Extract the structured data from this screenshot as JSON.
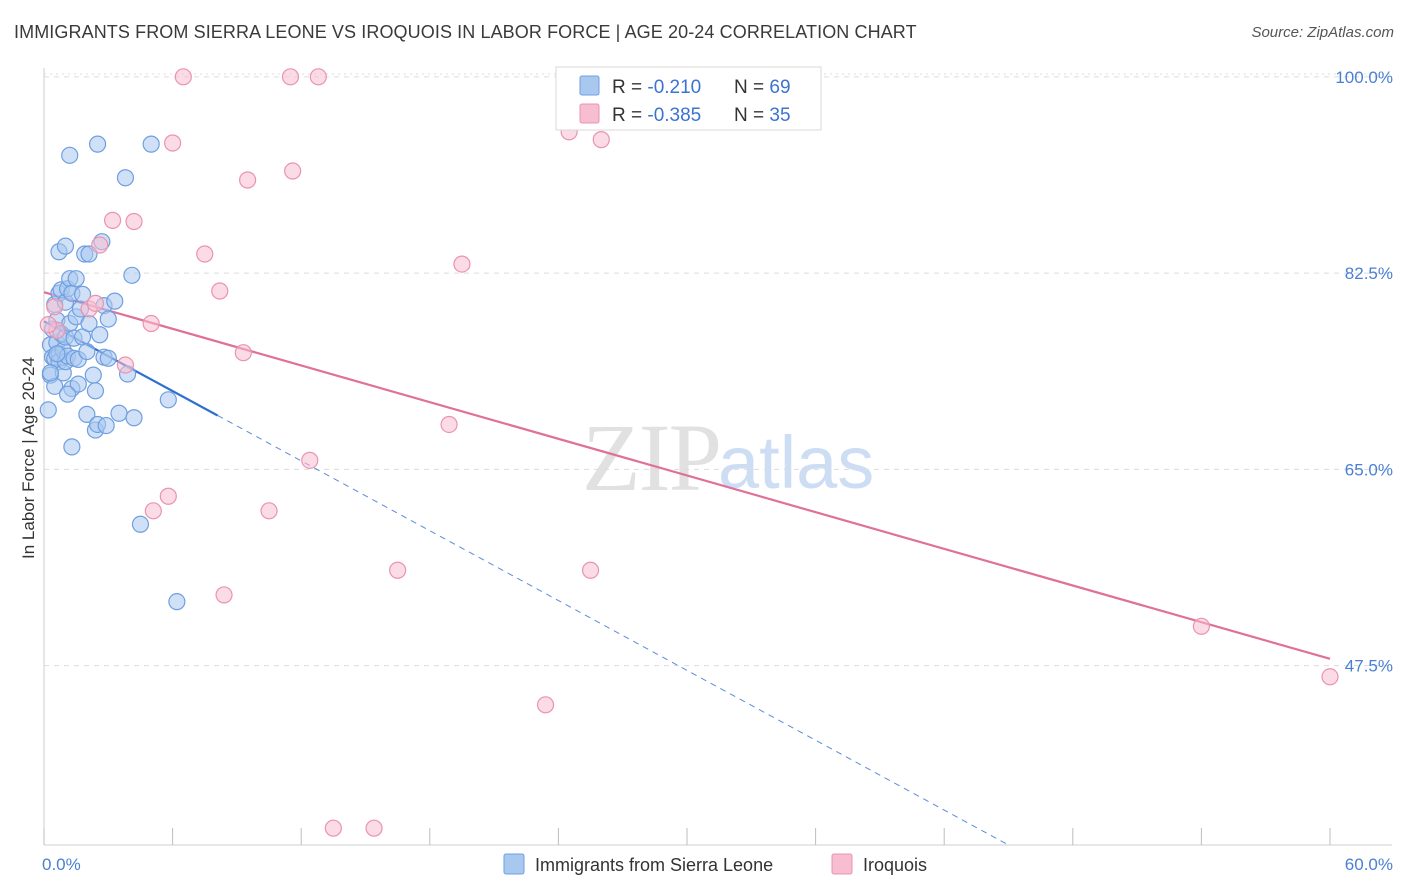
{
  "title": "IMMIGRANTS FROM SIERRA LEONE VS IROQUOIS IN LABOR FORCE | AGE 20-24 CORRELATION CHART",
  "source": "Source: ZipAtlas.com",
  "colors": {
    "blue_fill": "#a9c8f0",
    "blue_stroke": "#6f9fe0",
    "blue_line": "#2f6fd0",
    "pink_fill": "#f7bdd0",
    "pink_stroke": "#ea93b0",
    "pink_line": "#e0709a",
    "tick_label": "#4a7fd4",
    "grid": "#dcdcdc"
  },
  "chart_data": {
    "type": "scatter",
    "title": "IMMIGRANTS FROM SIERRA LEONE VS IROQUOIS IN LABOR FORCE | AGE 20-24 CORRELATION CHART",
    "xlabel": "",
    "ylabel": "In Labor Force | Age 20-24",
    "xlim": [
      0,
      60
    ],
    "ylim": [
      31.5,
      101.5
    ],
    "x_tick_labels": [
      "0.0%",
      "60.0%"
    ],
    "y_ticks": [
      47.5,
      65.0,
      82.5,
      100.0
    ],
    "y_tick_labels": [
      "47.5%",
      "65.0%",
      "82.5%",
      "100.0%"
    ],
    "watermark": "ZIPatlas",
    "legend": {
      "position": "top-center",
      "entries": [
        {
          "r_label": "R = ",
          "r_value": "-0.210",
          "n_label": "N = ",
          "n_value": "69"
        },
        {
          "r_label": "R = ",
          "r_value": "-0.385",
          "n_label": "N = ",
          "n_value": "35"
        }
      ]
    },
    "bottom_legend": [
      "Immigrants from Sierra Leone",
      "Iroquois"
    ],
    "series": [
      {
        "name": "Immigrants from Sierra Leone",
        "color": "blue",
        "trend_solid": {
          "x": [
            0,
            8.1
          ],
          "y": [
            78.2,
            69.8
          ]
        },
        "trend_dashed": {
          "x": [
            8.1,
            45.0
          ],
          "y": [
            69.8,
            31.5
          ]
        },
        "points": [
          [
            0.2,
            70.3
          ],
          [
            0.3,
            76.1
          ],
          [
            0.3,
            73.4
          ],
          [
            0.4,
            75.0
          ],
          [
            0.4,
            77.5
          ],
          [
            0.5,
            79.7
          ],
          [
            0.5,
            74.9
          ],
          [
            0.5,
            72.4
          ],
          [
            0.6,
            78.3
          ],
          [
            0.6,
            76.3
          ],
          [
            0.7,
            80.7
          ],
          [
            0.7,
            75.3
          ],
          [
            0.7,
            74.6
          ],
          [
            0.7,
            84.4
          ],
          [
            0.8,
            81.0
          ],
          [
            0.8,
            77.1
          ],
          [
            0.9,
            75.6
          ],
          [
            0.9,
            73.6
          ],
          [
            1.0,
            79.9
          ],
          [
            1.0,
            76.8
          ],
          [
            1.0,
            74.6
          ],
          [
            1.0,
            84.9
          ],
          [
            1.1,
            81.1
          ],
          [
            1.1,
            75.1
          ],
          [
            1.2,
            82.0
          ],
          [
            1.2,
            78.0
          ],
          [
            1.2,
            93.0
          ],
          [
            1.3,
            80.7
          ],
          [
            1.3,
            72.2
          ],
          [
            1.3,
            67.0
          ],
          [
            1.4,
            74.9
          ],
          [
            1.4,
            76.7
          ],
          [
            1.5,
            82.0
          ],
          [
            1.5,
            78.6
          ],
          [
            1.6,
            74.8
          ],
          [
            1.6,
            72.6
          ],
          [
            1.7,
            79.3
          ],
          [
            1.8,
            80.6
          ],
          [
            1.8,
            76.8
          ],
          [
            1.9,
            84.2
          ],
          [
            2.0,
            69.9
          ],
          [
            2.0,
            75.5
          ],
          [
            2.1,
            84.2
          ],
          [
            2.1,
            78.0
          ],
          [
            2.3,
            73.4
          ],
          [
            2.4,
            68.5
          ],
          [
            2.4,
            72.0
          ],
          [
            2.5,
            94.0
          ],
          [
            2.5,
            69.0
          ],
          [
            2.6,
            77.0
          ],
          [
            2.7,
            85.3
          ],
          [
            2.8,
            79.6
          ],
          [
            2.8,
            75.0
          ],
          [
            2.9,
            68.9
          ],
          [
            3.0,
            78.4
          ],
          [
            3.0,
            74.9
          ],
          [
            3.3,
            80.0
          ],
          [
            3.5,
            70.0
          ],
          [
            3.8,
            91.0
          ],
          [
            3.9,
            73.5
          ],
          [
            4.1,
            82.3
          ],
          [
            4.2,
            69.6
          ],
          [
            4.5,
            60.1
          ],
          [
            5.0,
            94.0
          ],
          [
            5.8,
            71.2
          ],
          [
            6.2,
            53.2
          ],
          [
            0.3,
            73.6
          ],
          [
            0.6,
            75.3
          ],
          [
            1.1,
            71.7
          ]
        ]
      },
      {
        "name": "Iroquois",
        "color": "pink",
        "trend_solid": {
          "x": [
            0,
            60
          ],
          "y": [
            80.8,
            48.1
          ]
        },
        "points": [
          [
            0.5,
            79.5
          ],
          [
            0.6,
            77.4
          ],
          [
            2.1,
            79.3
          ],
          [
            2.4,
            79.8
          ],
          [
            2.6,
            85.0
          ],
          [
            3.2,
            87.2
          ],
          [
            3.8,
            74.3
          ],
          [
            4.2,
            87.1
          ],
          [
            5.0,
            78.0
          ],
          [
            5.1,
            61.3
          ],
          [
            5.8,
            62.6
          ],
          [
            6.0,
            94.1
          ],
          [
            6.5,
            100.0
          ],
          [
            7.5,
            84.2
          ],
          [
            8.2,
            80.9
          ],
          [
            8.4,
            53.8
          ],
          [
            9.3,
            75.4
          ],
          [
            9.5,
            90.8
          ],
          [
            10.5,
            61.3
          ],
          [
            11.5,
            100.0
          ],
          [
            11.6,
            91.6
          ],
          [
            12.4,
            65.8
          ],
          [
            12.8,
            100.0
          ],
          [
            13.5,
            33.0
          ],
          [
            15.4,
            33.0
          ],
          [
            16.5,
            56.0
          ],
          [
            18.9,
            69.0
          ],
          [
            19.5,
            83.3
          ],
          [
            23.4,
            44.0
          ],
          [
            24.5,
            95.1
          ],
          [
            25.5,
            56.0
          ],
          [
            26.0,
            94.4
          ],
          [
            54.0,
            51.0
          ],
          [
            60.0,
            46.5
          ],
          [
            0.2,
            77.9
          ]
        ]
      }
    ]
  }
}
